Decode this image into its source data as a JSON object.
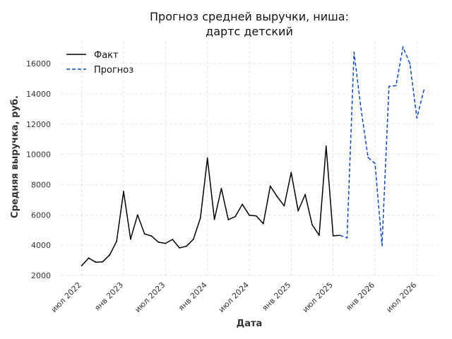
{
  "chart_data": {
    "type": "line",
    "title": [
      "Прогноз средней выручки, ниша:",
      "дартс детский"
    ],
    "xlabel": "Дата",
    "ylabel": "Средняя выручка, руб.",
    "ylim": [
      2000,
      17500
    ],
    "yticks": [
      2000,
      4000,
      6000,
      8000,
      10000,
      12000,
      14000,
      16000
    ],
    "xticks": [
      {
        "date": "2022-07",
        "label": "июл 2022"
      },
      {
        "date": "2023-01",
        "label": "янв 2023"
      },
      {
        "date": "2023-07",
        "label": "июл 2023"
      },
      {
        "date": "2024-01",
        "label": "янв 2024"
      },
      {
        "date": "2024-07",
        "label": "июл 2024"
      },
      {
        "date": "2025-01",
        "label": "янв 2025"
      },
      {
        "date": "2025-07",
        "label": "июл 2025"
      },
      {
        "date": "2026-01",
        "label": "янв 2026"
      },
      {
        "date": "2026-07",
        "label": "июл 2026"
      }
    ],
    "xrange": [
      "2022-04",
      "2026-10"
    ],
    "grid": true,
    "legend_position": "top-left",
    "series": [
      {
        "name": "Факт",
        "color": "#000000",
        "style": "solid",
        "points": [
          [
            "2022-07",
            2650
          ],
          [
            "2022-08",
            3150
          ],
          [
            "2022-09",
            2880
          ],
          [
            "2022-10",
            2900
          ],
          [
            "2022-11",
            3350
          ],
          [
            "2022-12",
            4250
          ],
          [
            "2023-01",
            7550
          ],
          [
            "2023-02",
            4400
          ],
          [
            "2023-03",
            6000
          ],
          [
            "2023-04",
            4750
          ],
          [
            "2023-05",
            4600
          ],
          [
            "2023-06",
            4200
          ],
          [
            "2023-07",
            4120
          ],
          [
            "2023-08",
            4380
          ],
          [
            "2023-09",
            3820
          ],
          [
            "2023-10",
            3930
          ],
          [
            "2023-11",
            4400
          ],
          [
            "2023-12",
            5800
          ],
          [
            "2024-01",
            9750
          ],
          [
            "2024-02",
            5700
          ],
          [
            "2024-03",
            7750
          ],
          [
            "2024-04",
            5680
          ],
          [
            "2024-05",
            5900
          ],
          [
            "2024-06",
            6700
          ],
          [
            "2024-07",
            5980
          ],
          [
            "2024-08",
            5930
          ],
          [
            "2024-09",
            5420
          ],
          [
            "2024-10",
            7900
          ],
          [
            "2024-11",
            7200
          ],
          [
            "2024-12",
            6600
          ],
          [
            "2025-01",
            8800
          ],
          [
            "2025-02",
            6270
          ],
          [
            "2025-03",
            7350
          ],
          [
            "2025-04",
            5350
          ],
          [
            "2025-05",
            4650
          ],
          [
            "2025-06",
            10550
          ],
          [
            "2025-07",
            4620
          ],
          [
            "2025-08",
            4650
          ]
        ]
      },
      {
        "name": "Прогноз",
        "color": "#0a46d0",
        "style": "dashed",
        "points": [
          [
            "2025-08",
            4650
          ],
          [
            "2025-09",
            4480
          ],
          [
            "2025-10",
            16750
          ],
          [
            "2025-11",
            13000
          ],
          [
            "2025-12",
            9800
          ],
          [
            "2026-01",
            9400
          ],
          [
            "2026-02",
            3980
          ],
          [
            "2026-03",
            14500
          ],
          [
            "2026-04",
            14550
          ],
          [
            "2026-05",
            17100
          ],
          [
            "2026-06",
            16000
          ],
          [
            "2026-07",
            12400
          ],
          [
            "2026-08",
            14250
          ]
        ]
      }
    ]
  }
}
